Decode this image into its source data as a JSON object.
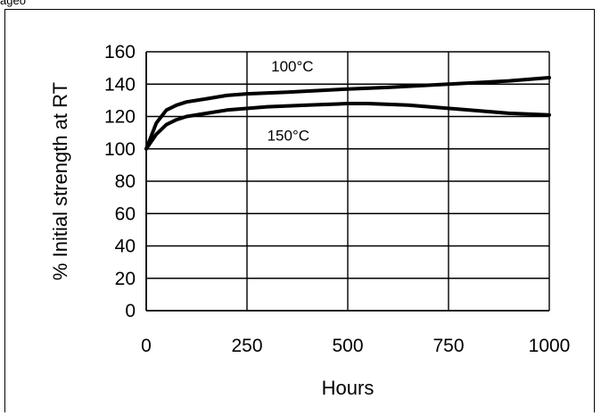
{
  "page": {
    "top_text": "ageo                          "
  },
  "chart_data": {
    "type": "line",
    "title": "",
    "xlabel": "Hours",
    "ylabel": "% Initial strength at RT",
    "xlim": [
      0,
      1000
    ],
    "ylim": [
      0,
      160
    ],
    "x_ticks": [
      0,
      250,
      500,
      750,
      1000
    ],
    "x_tick_labels": [
      "0",
      "250",
      "500",
      "750",
      "1000"
    ],
    "y_ticks": [
      0,
      20,
      40,
      60,
      80,
      100,
      120,
      140,
      160
    ],
    "y_tick_labels": [
      "0",
      "20",
      "40",
      "60",
      "80",
      "100",
      "120",
      "140",
      "160"
    ],
    "grid": {
      "horizontal": true,
      "vertical": true
    },
    "series": [
      {
        "name": "100°C",
        "x": [
          0,
          25,
          50,
          75,
          100,
          150,
          200,
          250,
          350,
          500,
          600,
          750,
          900,
          1000
        ],
        "y": [
          100,
          116,
          124,
          127,
          129,
          131,
          133,
          134,
          135,
          137,
          138,
          140,
          142,
          144
        ]
      },
      {
        "name": "150°C",
        "x": [
          0,
          25,
          50,
          75,
          100,
          150,
          200,
          300,
          400,
          500,
          550,
          650,
          750,
          900,
          1000
        ],
        "y": [
          100,
          109,
          115,
          118,
          120,
          122,
          124,
          126,
          127,
          128,
          128,
          127,
          125,
          122,
          121
        ]
      }
    ],
    "annotations": [
      "100°C",
      "150°C"
    ],
    "line_color": "#000000",
    "grid_color": "#000000"
  }
}
